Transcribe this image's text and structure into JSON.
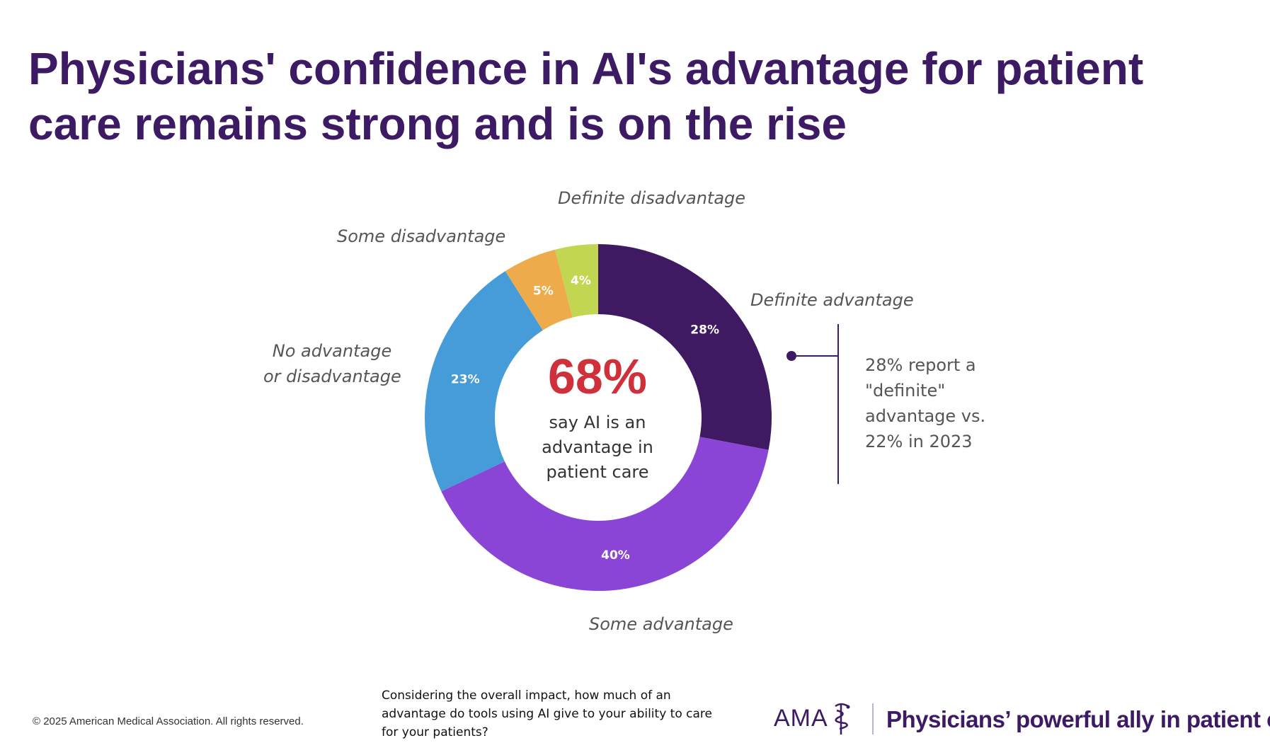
{
  "title": {
    "line1": "Physicians' confidence in AI's advantage for patient",
    "line2": "care remains strong and is on the rise"
  },
  "chart_data": {
    "type": "pie",
    "categories": [
      "Definite advantage",
      "Some advantage",
      "No advantage or disadvantage",
      "Some disadvantage",
      "Definite disadvantage"
    ],
    "values": [
      28,
      40,
      23,
      5,
      4
    ],
    "data_labels": [
      "28%",
      "40%",
      "23%",
      "5%",
      "4%"
    ],
    "colors": [
      "#3f1a62",
      "#8a45d6",
      "#469cd8",
      "#eeab4c",
      "#c3d652"
    ],
    "unit": "%"
  },
  "labels": {
    "definite_advantage": "Definite advantage",
    "some_advantage": "Some advantage",
    "no_adv_line1": "No advantage",
    "no_adv_line2": "or disadvantage",
    "some_disadvantage": "Some disadvantage",
    "definite_disadvantage": "Definite disadvantage"
  },
  "center": {
    "percent": "68%",
    "line1": "say AI is an",
    "line2": "advantage in",
    "line3": "patient care"
  },
  "callout": {
    "line1": "28% report a",
    "line2": "\"definite\"",
    "line3": "advantage vs.",
    "line4": "22% in 2023"
  },
  "footer": {
    "copyright": "© 2025 American Medical Association. All rights reserved.",
    "question_line1": "Considering the overall impact, how much of an",
    "question_line2": "advantage do tools using AI give to your ability to care",
    "question_line3": "for your patients?",
    "logo_text": "AMA",
    "tagline": "Physicians’ powerful ally in patient care"
  },
  "colors": {
    "brand_purple": "#3c1a64",
    "highlight_red": "#d0303a"
  }
}
